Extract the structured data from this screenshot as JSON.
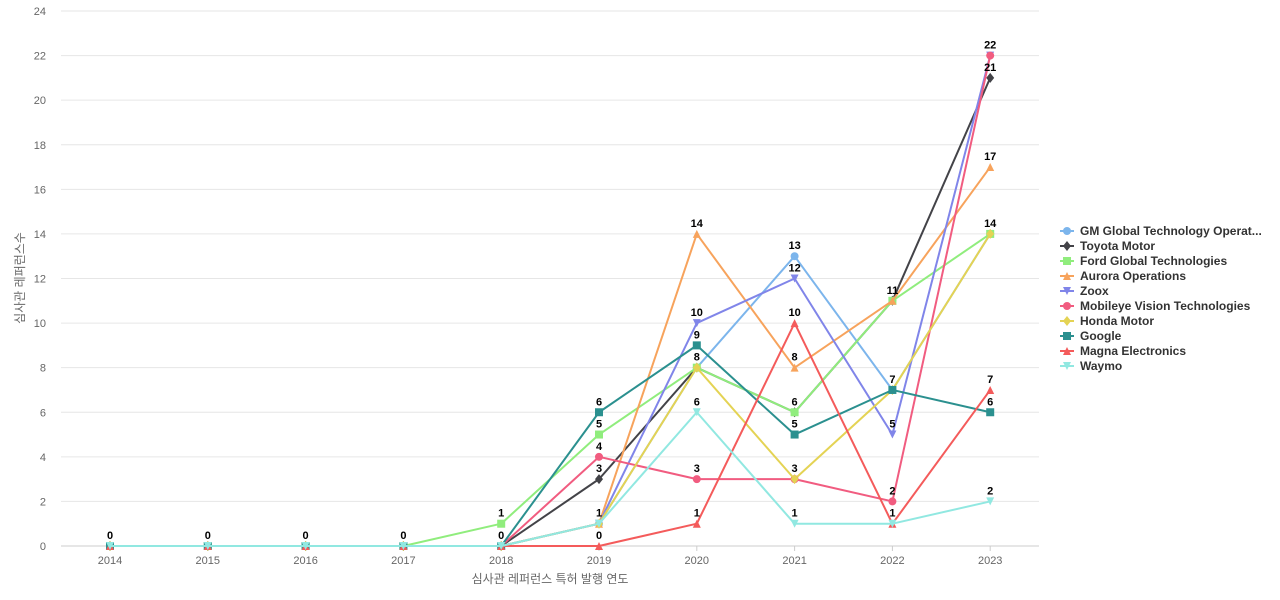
{
  "chart_data": {
    "type": "line",
    "title": "",
    "xlabel": "심사관 레퍼런스 특허 발행 연도",
    "ylabel": "심사관 레퍼런스수",
    "x": [
      "2014",
      "2015",
      "2016",
      "2017",
      "2018",
      "2019",
      "2020",
      "2021",
      "2022",
      "2023"
    ],
    "ylim": [
      0,
      24
    ],
    "yticks": [
      0,
      2,
      4,
      6,
      8,
      10,
      12,
      14,
      16,
      18,
      20,
      22,
      24
    ],
    "grid": true,
    "legend_position": "right",
    "series": [
      {
        "name": "GM Global Technology Operat...",
        "color": "#7cb5ec",
        "marker": "circle",
        "values": [
          0,
          0,
          0,
          0,
          0,
          1,
          8,
          13,
          7,
          14
        ]
      },
      {
        "name": "Toyota Motor",
        "color": "#434348",
        "marker": "diamond",
        "values": [
          0,
          0,
          0,
          0,
          0,
          3,
          8,
          6,
          11,
          21
        ]
      },
      {
        "name": "Ford Global Technologies",
        "color": "#90ed7d",
        "marker": "square",
        "values": [
          0,
          0,
          0,
          0,
          1,
          5,
          8,
          6,
          11,
          14
        ]
      },
      {
        "name": "Aurora Operations",
        "color": "#f7a35c",
        "marker": "triangle",
        "values": [
          0,
          0,
          0,
          0,
          0,
          1,
          14,
          8,
          11,
          17
        ]
      },
      {
        "name": "Zoox",
        "color": "#8085e9",
        "marker": "triangle-down",
        "values": [
          0,
          0,
          0,
          0,
          0,
          1,
          10,
          12,
          5,
          22
        ]
      },
      {
        "name": "Mobileye Vision Technologies",
        "color": "#f15c80",
        "marker": "circle",
        "values": [
          0,
          0,
          0,
          0,
          0,
          4,
          3,
          3,
          2,
          22
        ]
      },
      {
        "name": "Honda Motor",
        "color": "#e4d354",
        "marker": "diamond",
        "values": [
          0,
          0,
          0,
          0,
          0,
          1,
          8,
          3,
          7,
          14
        ]
      },
      {
        "name": "Google",
        "color": "#2b908f",
        "marker": "square",
        "values": [
          0,
          0,
          0,
          0,
          0,
          6,
          9,
          5,
          7,
          6
        ]
      },
      {
        "name": "Magna Electronics",
        "color": "#f45b5b",
        "marker": "triangle",
        "values": [
          0,
          0,
          0,
          0,
          0,
          0,
          1,
          10,
          1,
          7
        ]
      },
      {
        "name": "Waymo",
        "color": "#91e8e1",
        "marker": "triangle-down",
        "values": [
          0,
          0,
          0,
          0,
          0,
          1,
          6,
          1,
          1,
          2
        ]
      }
    ],
    "data_labels": [
      {
        "year": "2014",
        "value": 0,
        "text": "0"
      },
      {
        "year": "2015",
        "value": 0,
        "text": "0"
      },
      {
        "year": "2016",
        "value": 0,
        "text": "0"
      },
      {
        "year": "2017",
        "value": 0,
        "text": "0"
      },
      {
        "year": "2018",
        "value": 1,
        "text": "1"
      },
      {
        "year": "2018",
        "value": 0,
        "text": "0"
      },
      {
        "year": "2019",
        "value": 6,
        "text": "6"
      },
      {
        "year": "2019",
        "value": 5,
        "text": "5"
      },
      {
        "year": "2019",
        "value": 4,
        "text": "4"
      },
      {
        "year": "2019",
        "value": 3,
        "text": "3"
      },
      {
        "year": "2019",
        "value": 1,
        "text": "1"
      },
      {
        "year": "2019",
        "value": 0,
        "text": "0"
      },
      {
        "year": "2020",
        "value": 14,
        "text": "14"
      },
      {
        "year": "2020",
        "value": 10,
        "text": "10"
      },
      {
        "year": "2020",
        "value": 9,
        "text": "9"
      },
      {
        "year": "2020",
        "value": 8,
        "text": "8"
      },
      {
        "year": "2020",
        "value": 6,
        "text": "6"
      },
      {
        "year": "2020",
        "value": 3,
        "text": "3"
      },
      {
        "year": "2020",
        "value": 1,
        "text": "1"
      },
      {
        "year": "2021",
        "value": 13,
        "text": "13"
      },
      {
        "year": "2021",
        "value": 12,
        "text": "12"
      },
      {
        "year": "2021",
        "value": 10,
        "text": "10"
      },
      {
        "year": "2021",
        "value": 8,
        "text": "8"
      },
      {
        "year": "2021",
        "value": 6,
        "text": "6"
      },
      {
        "year": "2021",
        "value": 5,
        "text": "5"
      },
      {
        "year": "2021",
        "value": 3,
        "text": "3"
      },
      {
        "year": "2021",
        "value": 1,
        "text": "1"
      },
      {
        "year": "2022",
        "value": 11,
        "text": "11"
      },
      {
        "year": "2022",
        "value": 7,
        "text": "7"
      },
      {
        "year": "2022",
        "value": 5,
        "text": "5"
      },
      {
        "year": "2022",
        "value": 2,
        "text": "2"
      },
      {
        "year": "2022",
        "value": 1,
        "text": "1"
      },
      {
        "year": "2023",
        "value": 22,
        "text": "22"
      },
      {
        "year": "2023",
        "value": 21,
        "text": "21"
      },
      {
        "year": "2023",
        "value": 17,
        "text": "17"
      },
      {
        "year": "2023",
        "value": 14,
        "text": "14"
      },
      {
        "year": "2023",
        "value": 7,
        "text": "7"
      },
      {
        "year": "2023",
        "value": 6,
        "text": "6"
      },
      {
        "year": "2023",
        "value": 2,
        "text": "2"
      }
    ]
  }
}
